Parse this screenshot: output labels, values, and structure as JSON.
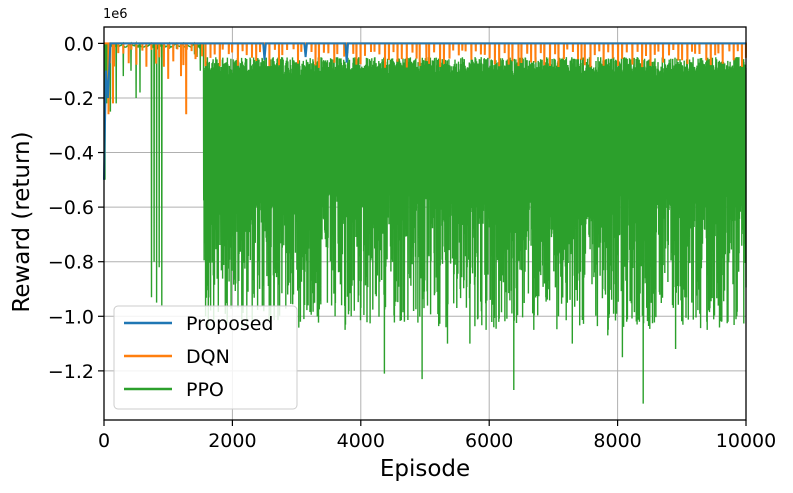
{
  "chart_data": {
    "type": "line",
    "xlabel": "Episode",
    "ylabel": "Reward (return)",
    "y_offset_label": "1e6",
    "xlim": [
      0,
      10000
    ],
    "ylim": [
      -1.38,
      0.06
    ],
    "x_ticks": [
      0,
      2000,
      4000,
      6000,
      8000,
      10000
    ],
    "x_tick_labels": [
      "0",
      "2000",
      "4000",
      "6000",
      "8000",
      "10000"
    ],
    "y_ticks": [
      0.0,
      -0.2,
      -0.4,
      -0.6,
      -0.8,
      -1.0,
      -1.2
    ],
    "y_tick_labels": [
      "0.0",
      "−0.2",
      "−0.4",
      "−0.6",
      "−0.8",
      "−1.0",
      "−1.2"
    ],
    "grid": true,
    "legend_position": "lower-left",
    "series": [
      {
        "name": "Proposed",
        "color": "#1f77b4",
        "x": [
          0,
          30,
          60,
          100,
          200,
          400,
          1000,
          2000,
          2480,
          2500,
          2520,
          3000,
          3120,
          3140,
          3160,
          3700,
          3760,
          3780,
          3800,
          5000,
          10000
        ],
        "values": [
          -0.5,
          -0.1,
          -0.2,
          0,
          0,
          0,
          0,
          0,
          0,
          -0.06,
          0,
          0,
          0,
          -0.05,
          0,
          0,
          0,
          -0.07,
          0,
          0,
          0
        ]
      },
      {
        "name": "DQN",
        "color": "#ff7f0e",
        "x": [
          0,
          10000
        ],
        "values": [
          0,
          0
        ],
        "spike_density_per_1000": 14,
        "spike_depth_range": [
          -0.02,
          -0.09
        ],
        "early_dips": [
          {
            "x": 70,
            "value": -0.26
          },
          {
            "x": 140,
            "value": -0.22
          },
          {
            "x": 1000,
            "value": -0.13
          },
          {
            "x": 1200,
            "value": -0.12
          },
          {
            "x": 1280,
            "value": -0.26
          },
          {
            "x": 1440,
            "value": -0.05
          }
        ]
      },
      {
        "name": "PPO",
        "color": "#2ca02c",
        "x": [
          0,
          10000
        ],
        "values": [
          0,
          0
        ],
        "early_phase": {
          "start": 0,
          "end": 1550,
          "baseline": -0.0,
          "dips": [
            {
              "x": 15,
              "value": -0.5
            },
            {
              "x": 40,
              "value": -0.22
            },
            {
              "x": 100,
              "value": -0.25
            },
            {
              "x": 190,
              "value": -0.22
            },
            {
              "x": 300,
              "value": -0.12
            },
            {
              "x": 420,
              "value": -0.1
            },
            {
              "x": 500,
              "value": -0.2
            },
            {
              "x": 560,
              "value": -0.18
            },
            {
              "x": 740,
              "value": -0.93
            },
            {
              "x": 780,
              "value": -0.8
            },
            {
              "x": 820,
              "value": -0.95
            },
            {
              "x": 860,
              "value": -0.82
            },
            {
              "x": 900,
              "value": -0.96
            },
            {
              "x": 1020,
              "value": -0.02
            },
            {
              "x": 1130,
              "value": -0.02
            },
            {
              "x": 1240,
              "value": -0.03
            },
            {
              "x": 1410,
              "value": -0.04
            },
            {
              "x": 1450,
              "value": -0.05
            },
            {
              "x": 1500,
              "value": -0.1
            }
          ]
        },
        "dense_phase": {
          "start": 1550,
          "end": 10000,
          "upper_range": [
            -0.05,
            -0.12
          ],
          "lower_range": [
            -0.55,
            -1.05
          ],
          "deep_spikes": [
            {
              "x": 1580,
              "value": -1.0
            },
            {
              "x": 1700,
              "value": -0.85
            },
            {
              "x": 2050,
              "value": -0.88
            },
            {
              "x": 2400,
              "value": -0.85
            },
            {
              "x": 2950,
              "value": -0.92
            },
            {
              "x": 3180,
              "value": -0.96
            },
            {
              "x": 3600,
              "value": -1.0
            },
            {
              "x": 3750,
              "value": -1.05
            },
            {
              "x": 3850,
              "value": -1.0
            },
            {
              "x": 4370,
              "value": -1.21
            },
            {
              "x": 4680,
              "value": -1.02
            },
            {
              "x": 4950,
              "value": -1.23
            },
            {
              "x": 5350,
              "value": -1.1
            },
            {
              "x": 5700,
              "value": -1.1
            },
            {
              "x": 5950,
              "value": -1.05
            },
            {
              "x": 6380,
              "value": -1.27
            },
            {
              "x": 6700,
              "value": -1.05
            },
            {
              "x": 7300,
              "value": -1.1
            },
            {
              "x": 7850,
              "value": -1.07
            },
            {
              "x": 8070,
              "value": -1.15
            },
            {
              "x": 8400,
              "value": -1.32
            },
            {
              "x": 8900,
              "value": -1.12
            },
            {
              "x": 9400,
              "value": -1.05
            },
            {
              "x": 9720,
              "value": -1.02
            }
          ]
        }
      }
    ]
  }
}
